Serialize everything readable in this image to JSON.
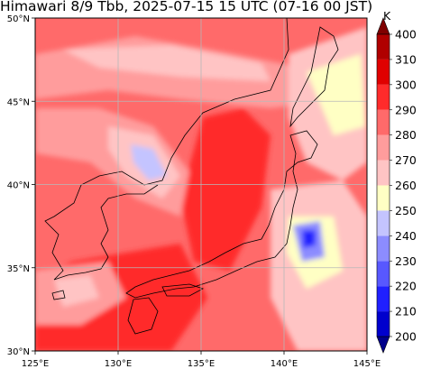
{
  "title": "Himawari 8/9 Tbb, 2025-07-15 15 UTC (07-16 00 JST)",
  "map": {
    "lon_range": [
      125,
      145
    ],
    "lat_range": [
      30,
      50
    ],
    "lon_ticks": [
      "125°E",
      "130°E",
      "135°E",
      "140°E",
      "145°E"
    ],
    "lat_ticks": [
      "30°N",
      "35°N",
      "40°N",
      "45°N",
      "50°N"
    ],
    "grid": true
  },
  "colorbar": {
    "unit": "K",
    "levels": [
      "200",
      "210",
      "220",
      "230",
      "240",
      "250",
      "260",
      "270",
      "280",
      "290",
      "300",
      "310",
      "400"
    ],
    "colors": [
      "#00008b",
      "#0000cd",
      "#2020ff",
      "#5858ff",
      "#8c8cff",
      "#c4c4ff",
      "#ffffc4",
      "#ffc4c4",
      "#ff9c9c",
      "#ff6a6a",
      "#ff2b2b",
      "#e00000",
      "#b00000",
      "#800000"
    ],
    "extend": "both"
  }
}
